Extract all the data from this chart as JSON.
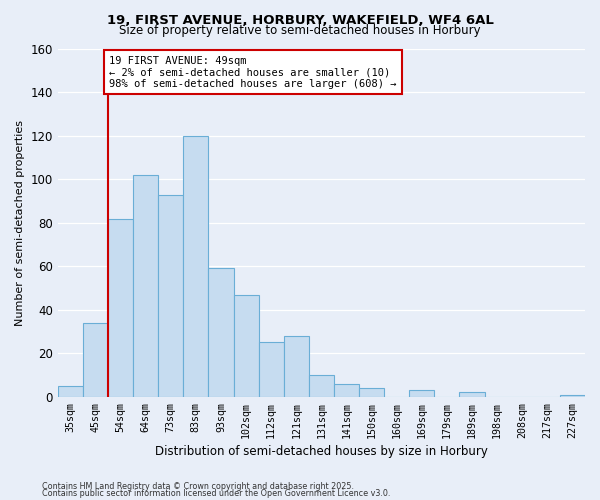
{
  "title": "19, FIRST AVENUE, HORBURY, WAKEFIELD, WF4 6AL",
  "subtitle": "Size of property relative to semi-detached houses in Horbury",
  "xlabel": "Distribution of semi-detached houses by size in Horbury",
  "ylabel": "Number of semi-detached properties",
  "categories": [
    "35sqm",
    "45sqm",
    "54sqm",
    "64sqm",
    "73sqm",
    "83sqm",
    "93sqm",
    "102sqm",
    "112sqm",
    "121sqm",
    "131sqm",
    "141sqm",
    "150sqm",
    "160sqm",
    "169sqm",
    "179sqm",
    "189sqm",
    "198sqm",
    "208sqm",
    "217sqm",
    "227sqm"
  ],
  "values": [
    5,
    34,
    82,
    102,
    93,
    120,
    59,
    47,
    25,
    28,
    10,
    6,
    4,
    0,
    3,
    0,
    2,
    0,
    0,
    0,
    1
  ],
  "bar_color": "#c6dcf0",
  "bar_edge_color": "#6aaed6",
  "highlight_line_color": "#cc0000",
  "annotation_title": "19 FIRST AVENUE: 49sqm",
  "annotation_line1": "← 2% of semi-detached houses are smaller (10)",
  "annotation_line2": "98% of semi-detached houses are larger (608) →",
  "annotation_box_color": "#ffffff",
  "annotation_box_edge": "#cc0000",
  "ylim": [
    0,
    160
  ],
  "yticks": [
    0,
    20,
    40,
    60,
    80,
    100,
    120,
    140,
    160
  ],
  "footnote1": "Contains HM Land Registry data © Crown copyright and database right 2025.",
  "footnote2": "Contains public sector information licensed under the Open Government Licence v3.0.",
  "background_color": "#e8eef8",
  "grid_color": "#ffffff",
  "title_fontsize": 9.5,
  "subtitle_fontsize": 8.5
}
